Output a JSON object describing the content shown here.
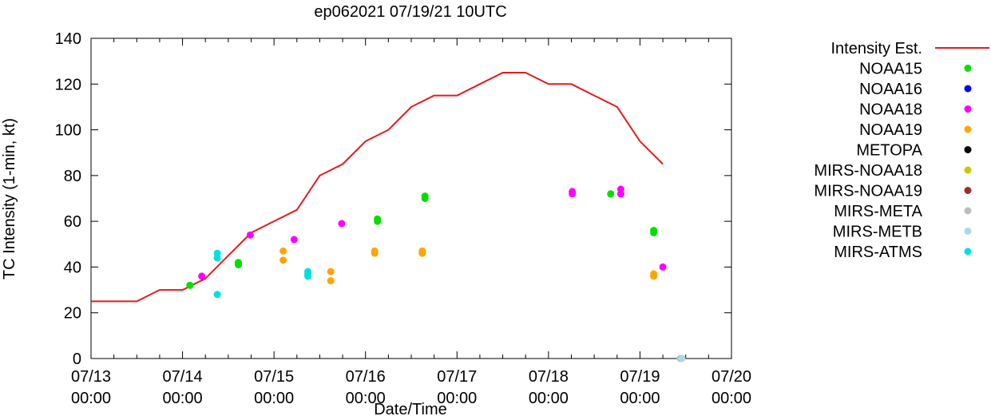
{
  "chart_data": {
    "type": "scatter",
    "title": "ep062021 07/19/21 10UTC",
    "xlabel": "Date/Time",
    "ylabel": "TC Intensity (1-min, kt)",
    "xlim_days": [
      0,
      7
    ],
    "ylim": [
      0,
      140
    ],
    "yticks": [
      0,
      20,
      40,
      60,
      80,
      100,
      120,
      140
    ],
    "xticks": [
      {
        "day": 0,
        "date": "07/13",
        "time": "00:00"
      },
      {
        "day": 1,
        "date": "07/14",
        "time": "00:00"
      },
      {
        "day": 2,
        "date": "07/15",
        "time": "00:00"
      },
      {
        "day": 3,
        "date": "07/16",
        "time": "00:00"
      },
      {
        "day": 4,
        "date": "07/17",
        "time": "00:00"
      },
      {
        "day": 5,
        "date": "07/18",
        "time": "00:00"
      },
      {
        "day": 6,
        "date": "07/19",
        "time": "00:00"
      },
      {
        "day": 7,
        "date": "07/20",
        "time": "00:00"
      }
    ],
    "grid": false,
    "legend_position": "right",
    "series": [
      {
        "name": "Intensity Est.",
        "kind": "line",
        "color": "#e41a1c",
        "points": [
          [
            0,
            25
          ],
          [
            0.25,
            25
          ],
          [
            0.5,
            25
          ],
          [
            0.75,
            30
          ],
          [
            1.0,
            30
          ],
          [
            1.25,
            35
          ],
          [
            1.5,
            45
          ],
          [
            1.75,
            55
          ],
          [
            2.0,
            60
          ],
          [
            2.25,
            65
          ],
          [
            2.5,
            80
          ],
          [
            2.75,
            85
          ],
          [
            3.0,
            95
          ],
          [
            3.25,
            100
          ],
          [
            3.5,
            110
          ],
          [
            3.75,
            115
          ],
          [
            4.0,
            115
          ],
          [
            4.25,
            120
          ],
          [
            4.5,
            125
          ],
          [
            4.75,
            125
          ],
          [
            5.0,
            120
          ],
          [
            5.25,
            120
          ],
          [
            5.5,
            115
          ],
          [
            5.75,
            110
          ],
          [
            6.0,
            95
          ],
          [
            6.25,
            85
          ]
        ]
      },
      {
        "name": "NOAA15",
        "kind": "scatter",
        "color": "#00e000",
        "points": [
          [
            1.08,
            32
          ],
          [
            1.61,
            42
          ],
          [
            1.61,
            41
          ],
          [
            3.13,
            61
          ],
          [
            3.13,
            60
          ],
          [
            3.65,
            71
          ],
          [
            3.65,
            70
          ],
          [
            5.68,
            72
          ],
          [
            6.15,
            56
          ],
          [
            6.15,
            55
          ]
        ]
      },
      {
        "name": "NOAA16",
        "kind": "scatter",
        "color": "#0000ff",
        "points": []
      },
      {
        "name": "NOAA18",
        "kind": "scatter",
        "color": "#ff00ff",
        "points": [
          [
            1.21,
            36
          ],
          [
            1.74,
            54
          ],
          [
            2.22,
            52
          ],
          [
            2.74,
            59
          ],
          [
            5.26,
            73
          ],
          [
            5.26,
            72
          ],
          [
            5.79,
            74
          ],
          [
            5.79,
            72
          ],
          [
            6.25,
            40
          ]
        ]
      },
      {
        "name": "NOAA19",
        "kind": "scatter",
        "color": "#ffa500",
        "points": [
          [
            2.1,
            47
          ],
          [
            2.1,
            43
          ],
          [
            2.62,
            38
          ],
          [
            2.62,
            34
          ],
          [
            3.1,
            47
          ],
          [
            3.1,
            46
          ],
          [
            3.62,
            47
          ],
          [
            3.62,
            46
          ],
          [
            6.15,
            37
          ],
          [
            6.15,
            36
          ]
        ]
      },
      {
        "name": "METOPA",
        "kind": "scatter",
        "color": "#000000",
        "points": []
      },
      {
        "name": "MIRS-NOAA18",
        "kind": "scatter",
        "color": "#c8c800",
        "points": []
      },
      {
        "name": "MIRS-NOAA19",
        "kind": "scatter",
        "color": "#a52a2a",
        "points": []
      },
      {
        "name": "MIRS-META",
        "kind": "scatter",
        "color": "#bebebe",
        "points": [
          [
            6.44,
            0
          ]
        ]
      },
      {
        "name": "MIRS-METB",
        "kind": "scatter",
        "color": "#add8e6",
        "points": [
          [
            6.46,
            0
          ]
        ]
      },
      {
        "name": "MIRS-ATMS",
        "kind": "scatter",
        "color": "#00e0e0",
        "points": [
          [
            1.38,
            46
          ],
          [
            1.38,
            44
          ],
          [
            1.38,
            28
          ],
          [
            2.37,
            38
          ],
          [
            2.37,
            37
          ],
          [
            2.37,
            36
          ]
        ]
      }
    ]
  }
}
